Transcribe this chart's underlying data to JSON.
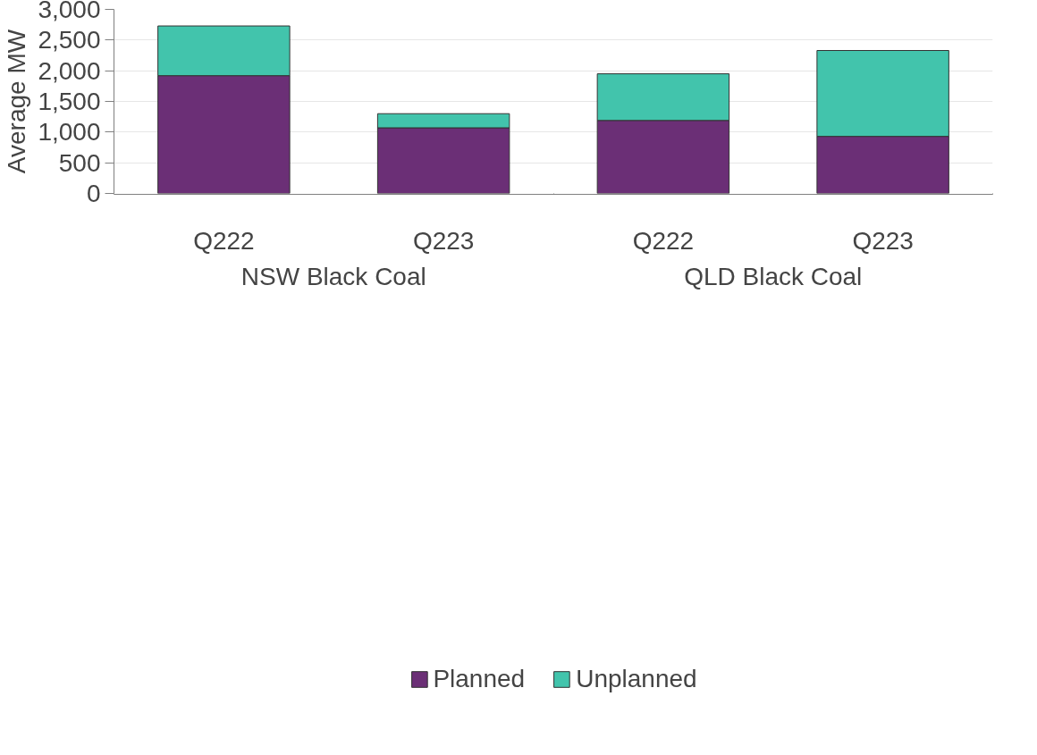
{
  "chart_data": {
    "type": "bar",
    "stacked": true,
    "ylabel": "Average MW",
    "categories": [
      "Q222",
      "Q223",
      "Q222",
      "Q223"
    ],
    "annotations": [
      "NSW Black Coal",
      "QLD Black Coal"
    ],
    "series": [
      {
        "name": "Planned",
        "color": "#6b2f76",
        "values": [
          1920,
          1070,
          1190,
          930
        ]
      },
      {
        "name": "Unplanned",
        "color": "#42c4ac",
        "values": [
          810,
          230,
          760,
          1400
        ]
      }
    ],
    "ylim": [
      0,
      3000
    ],
    "yticks": [
      0,
      500,
      {
        "value": 1000,
        "label": "1,000"
      },
      {
        "value": 1500,
        "label": "1,500"
      },
      {
        "value": 2000,
        "label": "2,000"
      },
      {
        "value": 2500,
        "label": "2,500"
      },
      {
        "value": 3000,
        "label": "3,000"
      }
    ],
    "grid": "y",
    "legend": "bottom"
  }
}
